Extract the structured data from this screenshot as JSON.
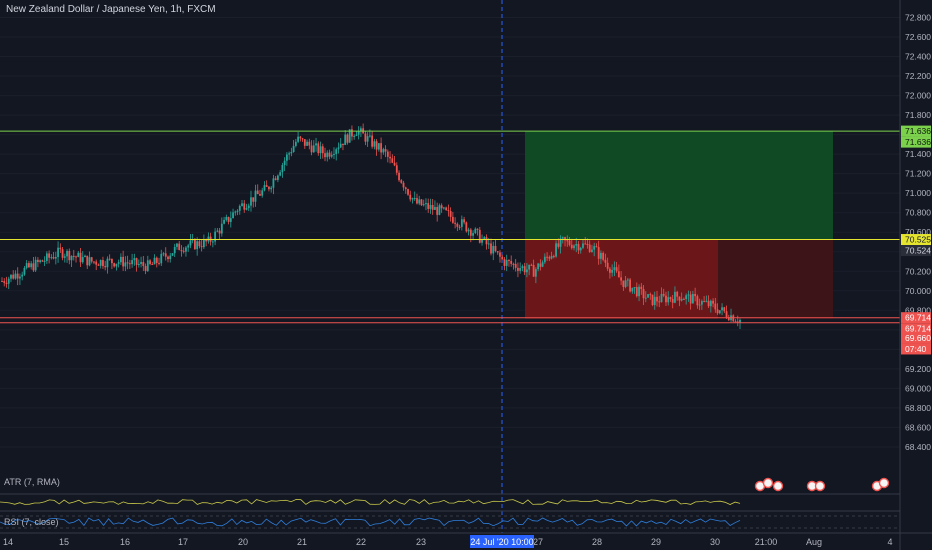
{
  "header": {
    "title": "New Zealand Dollar / Japanese Yen, 1h, FXCM"
  },
  "indicators": {
    "atr_label": "ATR (7, RMA)",
    "rsi_label": "RSI (7, close)"
  },
  "colors": {
    "background": "#131722",
    "up": "#26a69a",
    "down": "#ef5350",
    "target_line": "#7cd14c",
    "entry_line": "#e5e530",
    "stop_line": "#ef5350",
    "vline": "#2962ff",
    "profit_zone": "#0f4a24",
    "loss_zone": "#6b1619"
  },
  "chart_data": {
    "type": "candlestick",
    "title": "New Zealand Dollar / Japanese Yen, 1h, FXCM",
    "ylim": [
      68.2,
      72.95
    ],
    "y_ticks": [
      "72.800",
      "72.600",
      "72.400",
      "72.200",
      "72.000",
      "71.800",
      "71.600",
      "71.400",
      "71.200",
      "71.000",
      "70.800",
      "70.600",
      "70.400",
      "70.200",
      "70.000",
      "69.800",
      "69.600",
      "69.400",
      "69.200",
      "69.000",
      "68.800",
      "68.600",
      "68.400"
    ],
    "x_ticks": [
      "14",
      "15",
      "16",
      "17",
      "20",
      "21",
      "22",
      "23",
      "27",
      "28",
      "29",
      "30",
      "21:00",
      "Aug",
      "4"
    ],
    "x_highlight": "24 Jul '20   10:00",
    "price_path": [
      [
        0,
        70.1
      ],
      [
        1,
        70.25
      ],
      [
        2,
        70.4
      ],
      [
        3,
        70.3
      ],
      [
        4,
        70.3
      ],
      [
        5,
        70.25
      ],
      [
        6,
        70.45
      ],
      [
        7,
        70.5
      ],
      [
        8,
        70.85
      ],
      [
        9,
        71.05
      ],
      [
        10,
        71.55
      ],
      [
        11,
        71.4
      ],
      [
        12,
        71.65
      ],
      [
        13,
        71.4
      ],
      [
        14,
        70.9
      ],
      [
        15,
        70.8
      ],
      [
        16,
        70.6
      ],
      [
        17,
        70.3
      ],
      [
        18,
        70.2
      ],
      [
        19,
        70.5
      ],
      [
        20,
        70.45
      ],
      [
        21,
        70.1
      ],
      [
        22,
        69.9
      ],
      [
        23,
        69.95
      ],
      [
        24,
        69.85
      ],
      [
        25,
        69.7
      ]
    ],
    "levels": {
      "target": "71.636",
      "target_alt": "71.636",
      "entry": "70.525",
      "entry_alt": "70.524",
      "stop": "69.714",
      "stop_alt": "69.714",
      "current": "69.660",
      "countdown": "07:40",
      "target_value": 71.636,
      "entry_value": 70.525,
      "stop_value": 69.714,
      "current_value": 69.66
    }
  }
}
